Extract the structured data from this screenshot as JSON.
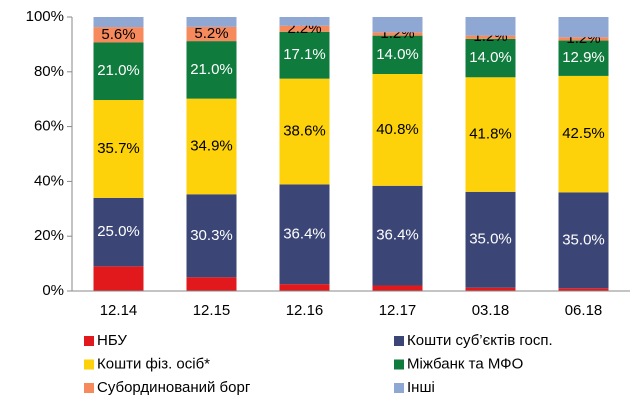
{
  "chart_data": {
    "type": "stacked_bar",
    "categories": [
      "12.14",
      "12.15",
      "12.16",
      "12.17",
      "03.18",
      "06.18"
    ],
    "series": [
      {
        "name": "НБУ",
        "color": "#e2191c",
        "values": [
          9.0,
          5.0,
          2.5,
          2.0,
          1.2,
          1.0
        ],
        "value_labels": [
          null,
          null,
          null,
          null,
          null,
          null
        ]
      },
      {
        "name": "Кошти суб’єктів госп.",
        "color": "#3b4677",
        "values": [
          25.0,
          30.3,
          36.4,
          36.4,
          35.0,
          35.0
        ],
        "value_labels": [
          "25.0%",
          "30.3%",
          "36.4%",
          "36.4%",
          "35.0%",
          "35.0%"
        ]
      },
      {
        "name": "Кошти фіз. осіб*",
        "color": "#fdd20a",
        "values": [
          35.7,
          34.9,
          38.6,
          40.8,
          41.8,
          42.5
        ],
        "value_labels": [
          "35.7%",
          "34.9%",
          "38.6%",
          "40.8%",
          "41.8%",
          "42.5%"
        ]
      },
      {
        "name": "Міжбанк та МФО",
        "color": "#0f7b3d",
        "values": [
          21.0,
          21.0,
          17.1,
          14.0,
          14.0,
          12.9
        ],
        "value_labels": [
          "21.0%",
          "21.0%",
          "17.1%",
          "14.0%",
          "14.0%",
          "12.9%"
        ]
      },
      {
        "name": "Субординований борг",
        "color": "#f68a5c",
        "values": [
          5.6,
          5.2,
          2.2,
          1.2,
          1.2,
          1.2
        ],
        "value_labels": [
          "5.6%",
          "5.2%",
          "2.2%",
          "1.2%",
          "1.2%",
          "1.2%"
        ]
      },
      {
        "name": "Інші",
        "color": "#8ea7d3",
        "values": [
          3.7,
          3.6,
          3.2,
          5.6,
          6.8,
          7.4
        ],
        "value_labels": [
          null,
          null,
          null,
          null,
          null,
          null
        ]
      }
    ],
    "ylim": [
      0,
      100
    ],
    "yticks": [
      {
        "value": 0,
        "label": "0%"
      },
      {
        "value": 20,
        "label": "20%"
      },
      {
        "value": 40,
        "label": "40%"
      },
      {
        "value": 60,
        "label": "60%"
      },
      {
        "value": 80,
        "label": "80%"
      },
      {
        "value": 100,
        "label": "100%"
      }
    ],
    "label_colors": [
      "#000000",
      "#ffffff",
      "#000000",
      "#ffffff",
      "#000000",
      "#000000"
    ]
  }
}
